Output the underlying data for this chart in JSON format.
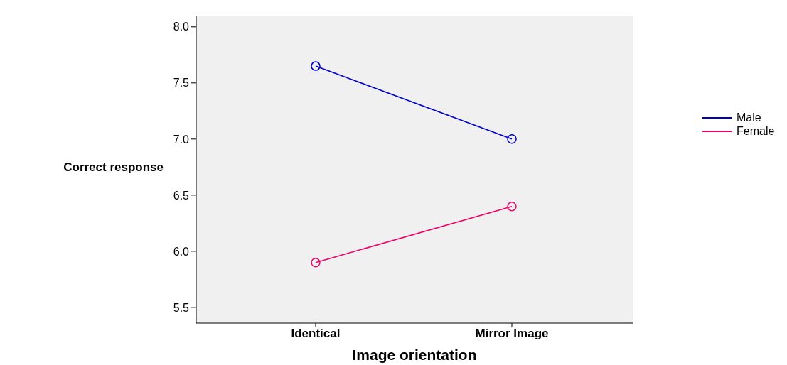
{
  "chart_data": {
    "type": "line",
    "xlabel": "Image orientation",
    "ylabel": "Correct response",
    "categories": [
      "Identical",
      "Mirror Image"
    ],
    "series": [
      {
        "name": "Male",
        "color": "#0000cc",
        "values": [
          7.65,
          7.0
        ]
      },
      {
        "name": "Female",
        "color": "#ee0066",
        "values": [
          5.9,
          6.4
        ]
      }
    ],
    "ylim": [
      5.36,
      8.1
    ],
    "yticks": [
      {
        "value": 5.5,
        "label": "5.5"
      },
      {
        "value": 6,
        "label": "6.0"
      },
      {
        "value": 6.5,
        "label": "6.5"
      },
      {
        "value": 7,
        "label": "7.0"
      },
      {
        "value": 7.5,
        "label": "7.5"
      },
      {
        "value": 8,
        "label": "8.0"
      }
    ],
    "legend": "right",
    "marker": "circle",
    "line_style": "solid"
  }
}
